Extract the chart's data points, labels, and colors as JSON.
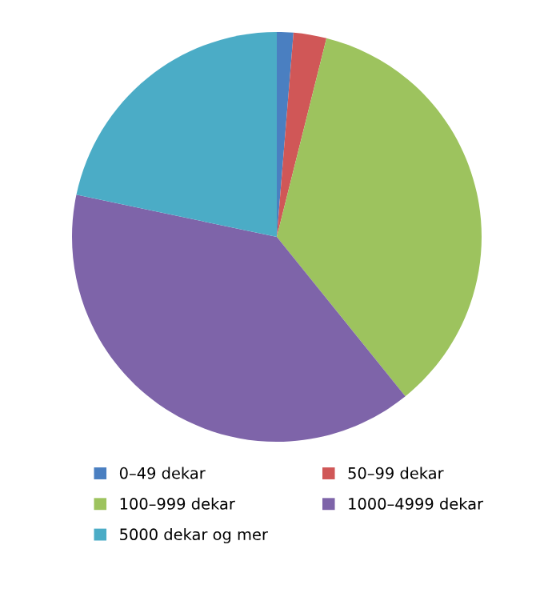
{
  "chart_data": {
    "type": "pie",
    "categories": [
      "0–49 dekar",
      "50–99 dekar",
      "100–999 dekar",
      "1000–4999 dekar",
      "5000 dekar og mer"
    ],
    "values": [
      1.3,
      2.6,
      35.3,
      39.1,
      21.7
    ],
    "colors": [
      "#4a7fc1",
      "#d05757",
      "#9dc35e",
      "#7e64a9",
      "#4bacc6"
    ],
    "legend": "bottom"
  }
}
